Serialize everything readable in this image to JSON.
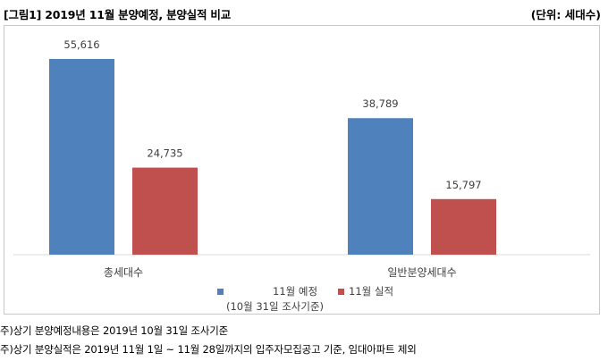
{
  "header": {
    "title": "[그림1] 2019년 11월 분양예정, 분양실적 비교",
    "unit": "(단위: 세대수)"
  },
  "chart_data": {
    "type": "bar",
    "categories": [
      "총세대수",
      "일반분양세대수"
    ],
    "series": [
      {
        "name": "11월 예정",
        "values": [
          55616,
          38789
        ],
        "labels": [
          "55,616",
          "38,789"
        ],
        "color": "#4f81bd"
      },
      {
        "name": "11월 실적",
        "values": [
          24735,
          15797
        ],
        "labels": [
          "24,735",
          "15,797"
        ],
        "color": "#c0504d"
      }
    ],
    "legend_note": "(10월 31일 조사기준)",
    "ylim": [
      0,
      65000
    ],
    "grid": false,
    "legend": "bottom"
  },
  "notes": [
    "주)상기 분양예정내용은 2019년 10월 31일 조사기준",
    "주)상기 분양실적은 2019년 11월 1일 ~ 11월 28일까지의 입주자모집공고 기준, 임대아파트 제외"
  ]
}
